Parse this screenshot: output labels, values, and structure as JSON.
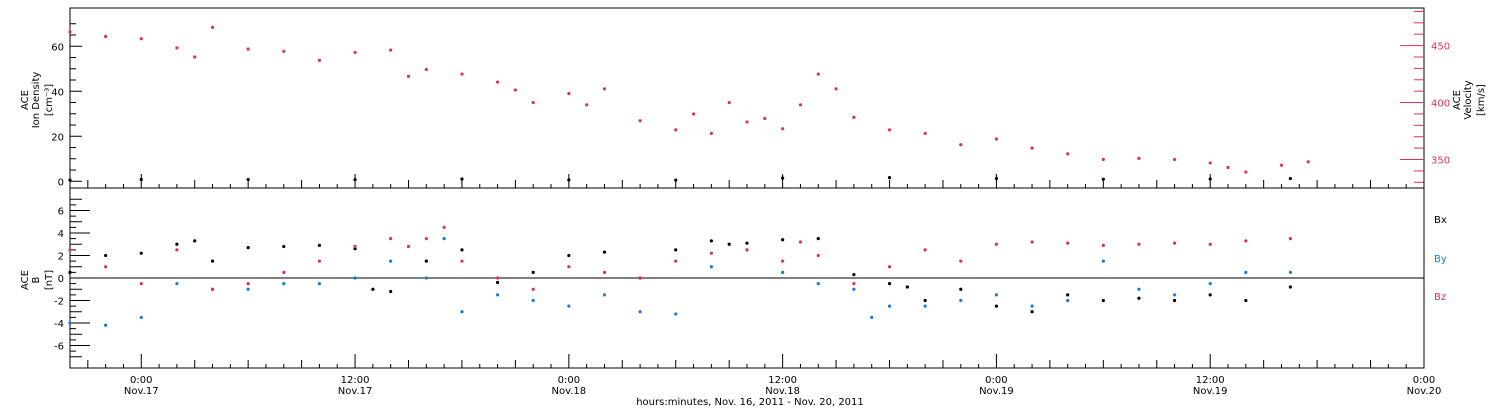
{
  "colors": {
    "density": "#000000",
    "velocity": "#e0305a",
    "bx": "#000000",
    "by": "#1a7ad4",
    "bz": "#e0305a",
    "axes": "#000000"
  },
  "chart_data": [
    {
      "type": "scatter",
      "panel": "plasma",
      "ylabel_left": [
        "ACE",
        "Ion Density",
        "[cm⁻³]"
      ],
      "ylabel_right": [
        "ACE",
        "Velocity",
        "[km/s]"
      ],
      "ylim_left": [
        -3,
        77
      ],
      "yticks_left": [
        0,
        20,
        40,
        60
      ],
      "ylim_right": [
        325,
        483
      ],
      "yticks_right": [
        350,
        400,
        450
      ],
      "x_hours_range": [
        -4,
        72
      ],
      "grid": false,
      "series": [
        {
          "side": "left",
          "color_key": "density",
          "x": [
            -4,
            0,
            6,
            12,
            18,
            24,
            30,
            36,
            42,
            48,
            54,
            60,
            64.5
          ],
          "y": [
            0.5,
            0.8,
            0.8,
            0.7,
            1.0,
            0.6,
            0.5,
            1.4,
            1.6,
            1.2,
            0.9,
            1.0,
            1.2
          ]
        },
        {
          "side": "right",
          "color_key": "velocity",
          "x": [
            -4,
            -2,
            0,
            2,
            3,
            4,
            6,
            8,
            10,
            12,
            14,
            15,
            16,
            18,
            20,
            21,
            22,
            24,
            25,
            26,
            28,
            30,
            31,
            32,
            33,
            34,
            35,
            36,
            37,
            38,
            39,
            40,
            42,
            44,
            46,
            48,
            50,
            52,
            54,
            56,
            58,
            60,
            61,
            62,
            64,
            65.5
          ],
          "y": [
            462,
            458,
            456,
            448,
            440,
            466,
            447,
            445,
            437,
            444,
            446,
            423,
            429,
            425,
            418,
            411,
            400,
            408,
            398,
            412,
            384,
            376,
            390,
            373,
            400,
            383,
            386,
            377,
            398,
            425,
            412,
            387,
            376,
            373,
            363,
            368,
            360,
            355,
            350,
            351,
            350,
            347,
            343,
            339,
            345,
            348
          ]
        }
      ]
    },
    {
      "type": "scatter",
      "panel": "magnetic-field",
      "ylabel_left": [
        "ACE",
        "B",
        "[nT]"
      ],
      "ylim": [
        -8,
        8
      ],
      "yticks": [
        -6,
        -4,
        -2,
        0,
        2,
        4,
        6
      ],
      "x_hours_range": [
        -4,
        72
      ],
      "grid": false,
      "zero_line": true,
      "legend": {
        "placement": "right",
        "entries": [
          "Bx",
          "By",
          "Bz"
        ]
      },
      "series": [
        {
          "name": "Bx",
          "color_key": "bx",
          "x": [
            -4,
            -2,
            0,
            2,
            3,
            4,
            6,
            8,
            10,
            12,
            13,
            14,
            16,
            18,
            20,
            22,
            24,
            26,
            28,
            30,
            32,
            33,
            34,
            36,
            38,
            40,
            42,
            43,
            44,
            46,
            48,
            50,
            52,
            54,
            56,
            58,
            60,
            62,
            64.5
          ],
          "y": [
            0.5,
            2.0,
            2.2,
            3.0,
            3.3,
            1.5,
            2.7,
            2.8,
            2.9,
            2.6,
            -1.0,
            -1.2,
            1.5,
            2.5,
            -0.4,
            0.5,
            2.0,
            2.3,
            0.0,
            2.5,
            3.3,
            3.0,
            3.1,
            3.4,
            3.5,
            0.3,
            -0.5,
            -0.8,
            -2.0,
            -1.0,
            -2.5,
            -3.0,
            -1.5,
            -2.0,
            -1.8,
            -2.0,
            -1.5,
            -2.0,
            -0.8
          ]
        },
        {
          "name": "By",
          "color_key": "by",
          "x": [
            -4,
            -2,
            0,
            2,
            4,
            6,
            8,
            10,
            12,
            14,
            16,
            17,
            18,
            20,
            22,
            24,
            26,
            28,
            30,
            32,
            34,
            36,
            38,
            40,
            41,
            42,
            44,
            46,
            48,
            50,
            52,
            54,
            56,
            58,
            60,
            62,
            64.5
          ],
          "y": [
            -4.0,
            -4.2,
            -3.5,
            -0.5,
            -1.0,
            -1.0,
            -0.5,
            -0.5,
            0.0,
            1.5,
            0.0,
            3.5,
            -3.0,
            -1.5,
            -2.0,
            -2.5,
            -1.5,
            -3.0,
            -3.2,
            1.0,
            2.5,
            0.5,
            -0.5,
            -1.0,
            -3.5,
            -2.5,
            -2.5,
            -2.0,
            -1.5,
            -2.5,
            -2.0,
            1.5,
            -1.0,
            -1.5,
            -0.5,
            0.5,
            0.5
          ]
        },
        {
          "name": "Bz",
          "color_key": "bz",
          "x": [
            -4,
            -2,
            0,
            2,
            4,
            6,
            8,
            10,
            12,
            14,
            15,
            16,
            17,
            18,
            20,
            22,
            24,
            26,
            28,
            30,
            32,
            34,
            36,
            37,
            38,
            40,
            42,
            44,
            46,
            48,
            50,
            52,
            54,
            56,
            58,
            60,
            62,
            64.5
          ],
          "y": [
            2.5,
            1.0,
            -0.5,
            2.5,
            -1.0,
            -0.5,
            0.5,
            1.5,
            2.8,
            3.5,
            2.8,
            3.5,
            4.5,
            1.5,
            0.0,
            -1.0,
            1.0,
            0.5,
            0.0,
            1.5,
            2.2,
            2.5,
            1.5,
            3.2,
            2.0,
            -0.5,
            1.0,
            2.5,
            1.5,
            3.0,
            3.2,
            3.1,
            2.9,
            3.0,
            3.1,
            3.0,
            3.3,
            3.5
          ]
        }
      ]
    }
  ],
  "x_axis": {
    "ticks": [
      {
        "hours": 0,
        "time": "0:00",
        "date": "Nov.17"
      },
      {
        "hours": 12,
        "time": "12:00",
        "date": "Nov.17"
      },
      {
        "hours": 24,
        "time": "0:00",
        "date": "Nov.18"
      },
      {
        "hours": 36,
        "time": "12:00",
        "date": "Nov.18"
      },
      {
        "hours": 48,
        "time": "0:00",
        "date": "Nov.19"
      },
      {
        "hours": 60,
        "time": "12:00",
        "date": "Nov.19"
      },
      {
        "hours": 72,
        "time": "0:00",
        "date": "Nov.20"
      }
    ],
    "title": "hours:minutes, Nov. 16, 2011 - Nov. 20, 2011"
  },
  "labels": {
    "density_ace": "ACE",
    "density_name": "Ion Density",
    "density_unit": "[cm⁻³]",
    "velocity_ace": "ACE",
    "velocity_name": "Velocity",
    "velocity_unit": "[km/s]",
    "b_ace": "ACE",
    "b_name": "B",
    "b_unit": "[nT]",
    "legend_bx": "Bx",
    "legend_by": "By",
    "legend_bz": "Bz"
  }
}
